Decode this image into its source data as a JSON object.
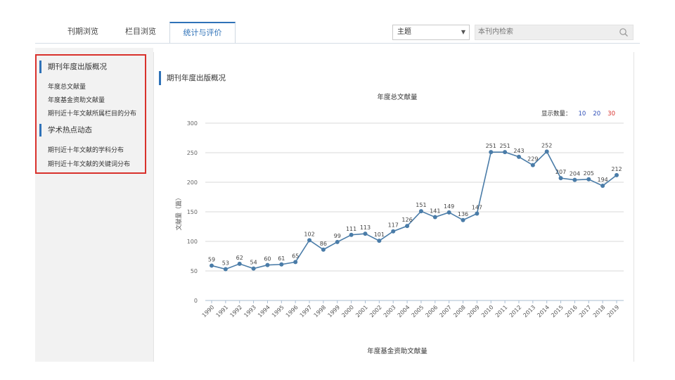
{
  "tabs": [
    {
      "label": "刊期浏览"
    },
    {
      "label": "栏目浏览"
    },
    {
      "label": "统计与评价"
    }
  ],
  "search": {
    "select_value": "主题",
    "placeholder": "本刊内检索"
  },
  "sidebar": {
    "sections": [
      {
        "title": "期刊年度出版概况",
        "items": [
          "年度总文献量",
          "年度基金资助文献量",
          "期刊近十年文献所属栏目的分布"
        ]
      },
      {
        "title": "学术热点动态",
        "items": [
          "期刊近十年文献的学科分布",
          "期刊近十年文献的关键词分布"
        ]
      }
    ]
  },
  "main": {
    "heading": "期刊年度出版概况",
    "chart_title": "年度总文献量",
    "show_count_label": "显示数量：",
    "show_count_options": [
      "10",
      "20",
      "30"
    ],
    "bottom_chart_title": "年度基金资助文献量"
  },
  "colors": {
    "accent": "#2f72b8",
    "line": "#4a7ca8",
    "highlight_box": "#d9312c",
    "selected_count": "#d9312c"
  },
  "chart_data": {
    "type": "line",
    "title": "年度总文献量",
    "xlabel": "",
    "ylabel": "文献量（篇）",
    "ylim": [
      0,
      300
    ],
    "yticks": [
      0,
      50,
      100,
      150,
      200,
      250,
      300
    ],
    "categories": [
      "1990",
      "1991",
      "1992",
      "1993",
      "1994",
      "1995",
      "1996",
      "1997",
      "1998",
      "1999",
      "2000",
      "2001",
      "2002",
      "2003",
      "2004",
      "2005",
      "2006",
      "2007",
      "2008",
      "2009",
      "2010",
      "2011",
      "2012",
      "2013",
      "2014",
      "2015",
      "2016",
      "2017",
      "2018",
      "2019"
    ],
    "series": [
      {
        "values": [
          59,
          53,
          62,
          54,
          60,
          61,
          65,
          102,
          86,
          99,
          111,
          113,
          101,
          117,
          126,
          151,
          141,
          149,
          136,
          147,
          251,
          251,
          243,
          229,
          252,
          207,
          204,
          205,
          194,
          212
        ]
      }
    ],
    "grid": true,
    "legend": "none"
  }
}
